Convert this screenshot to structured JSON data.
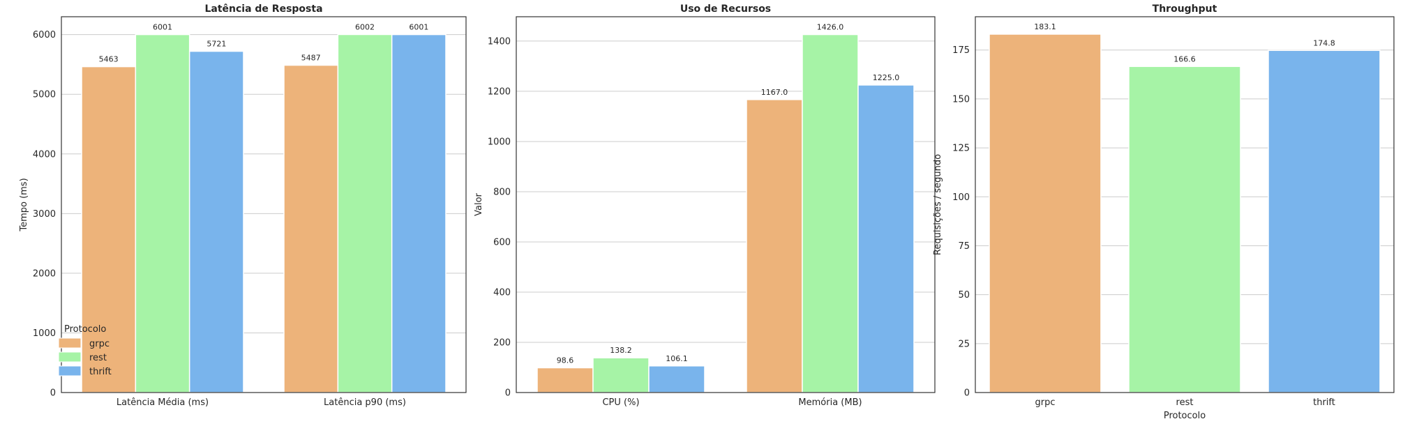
{
  "colors": {
    "grpc": "#EDB37A",
    "rest": "#A6F3A6",
    "thrift": "#79B4EC",
    "grid": "#CCCCCC",
    "frame": "#333333"
  },
  "chart_data": [
    {
      "type": "bar",
      "title": "Latência de Resposta",
      "xlabel": "",
      "ylabel": "Tempo (ms)",
      "categories": [
        "Latência Média (ms)",
        "Latência p90 (ms)"
      ],
      "series": [
        {
          "name": "grpc",
          "values": [
            5463,
            5487
          ],
          "labels": [
            "5463",
            "5487"
          ]
        },
        {
          "name": "rest",
          "values": [
            6001,
            6002
          ],
          "labels": [
            "6001",
            "6002"
          ]
        },
        {
          "name": "thrift",
          "values": [
            5721,
            6001
          ],
          "labels": [
            "5721",
            "6001"
          ]
        }
      ],
      "ylim": [
        0,
        6300
      ],
      "yticks": [
        0,
        1000,
        2000,
        3000,
        4000,
        5000,
        6000
      ],
      "grid": "y",
      "legend": {
        "title": "Protocolo",
        "placement": "lower-left",
        "entries": [
          "grpc",
          "rest",
          "thrift"
        ]
      }
    },
    {
      "type": "bar",
      "title": "Uso de Recursos",
      "xlabel": "",
      "ylabel": "Valor",
      "categories": [
        "CPU (%)",
        "Memória (MB)"
      ],
      "series": [
        {
          "name": "grpc",
          "values": [
            98.6,
            1167.0
          ],
          "labels": [
            "98.6",
            "1167.0"
          ]
        },
        {
          "name": "rest",
          "values": [
            138.2,
            1426.0
          ],
          "labels": [
            "138.2",
            "1426.0"
          ]
        },
        {
          "name": "thrift",
          "values": [
            106.1,
            1225.0
          ],
          "labels": [
            "106.1",
            "1225.0"
          ]
        }
      ],
      "ylim": [
        0,
        1497
      ],
      "yticks": [
        0,
        200,
        400,
        600,
        800,
        1000,
        1200,
        1400
      ],
      "grid": "y"
    },
    {
      "type": "bar",
      "title": "Throughput",
      "xlabel": "Protocolo",
      "ylabel": "Requisições / segundo",
      "categories": [
        "grpc",
        "rest",
        "thrift"
      ],
      "values": [
        183.1,
        166.6,
        174.8
      ],
      "labels": [
        "183.1",
        "166.6",
        "174.8"
      ],
      "bar_series": [
        "grpc",
        "rest",
        "thrift"
      ],
      "ylim": [
        0,
        192
      ],
      "yticks": [
        0,
        25,
        50,
        75,
        100,
        125,
        150,
        175
      ],
      "grid": "y"
    }
  ]
}
